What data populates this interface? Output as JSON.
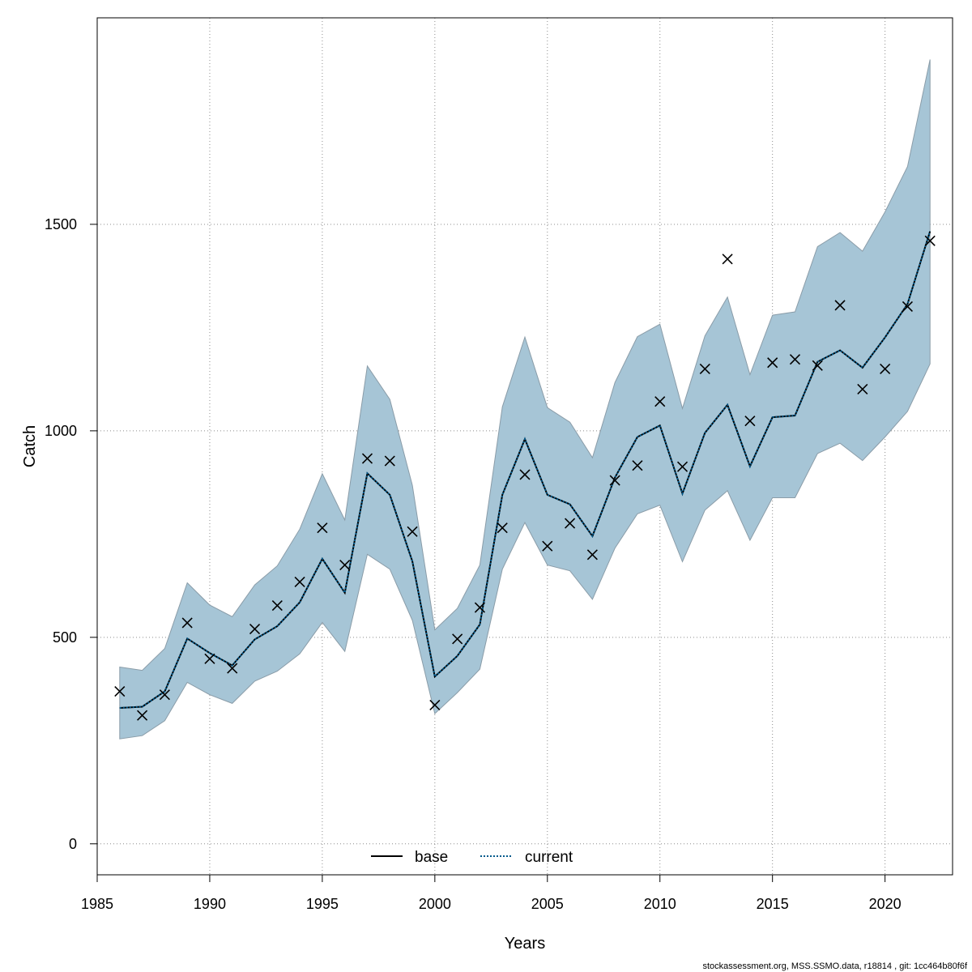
{
  "chart_data": {
    "type": "line",
    "xlabel": "Years",
    "ylabel": "Catch",
    "xlim": [
      1985,
      2023
    ],
    "ylim": [
      -75,
      2000
    ],
    "x_ticks": [
      1985,
      1990,
      1995,
      2000,
      2005,
      2010,
      2015,
      2020
    ],
    "y_ticks": [
      0,
      500,
      1000,
      1500
    ],
    "grid": true,
    "legend_position": "bottom-center",
    "band_color": "#a6c5d6",
    "band_edge_color": "#8a9ca8",
    "years": [
      1986,
      1987,
      1988,
      1989,
      1990,
      1991,
      1992,
      1993,
      1994,
      1995,
      1996,
      1997,
      1998,
      1999,
      2000,
      2001,
      2002,
      2003,
      2004,
      2005,
      2006,
      2007,
      2008,
      2009,
      2010,
      2011,
      2012,
      2013,
      2014,
      2015,
      2016,
      2017,
      2018,
      2019,
      2020,
      2021,
      2022
    ],
    "observed": [
      369,
      311,
      361,
      535,
      448,
      425,
      520,
      577,
      634,
      765,
      675,
      933,
      927,
      756,
      336,
      496,
      572,
      765,
      894,
      721,
      776,
      700,
      880,
      916,
      1071,
      913,
      1150,
      1416,
      1024,
      1165,
      1173,
      1158,
      1304,
      1101,
      1150,
      1301,
      1460
    ],
    "band_lower": [
      254,
      262,
      298,
      391,
      361,
      340,
      394,
      418,
      460,
      536,
      466,
      701,
      665,
      541,
      315,
      366,
      423,
      665,
      778,
      675,
      661,
      592,
      716,
      799,
      820,
      683,
      808,
      855,
      735,
      838,
      838,
      945,
      970,
      928,
      985,
      1047,
      1162
    ],
    "band_upper": [
      428,
      420,
      473,
      632,
      578,
      550,
      627,
      673,
      762,
      896,
      784,
      1157,
      1076,
      868,
      518,
      570,
      675,
      1058,
      1227,
      1056,
      1021,
      935,
      1117,
      1228,
      1258,
      1054,
      1230,
      1324,
      1136,
      1280,
      1288,
      1446,
      1480,
      1435,
      1530,
      1640,
      1899
    ],
    "series": [
      {
        "name": "base",
        "style": "solid",
        "color": "#000000",
        "values": [
          329,
          332,
          369,
          497,
          462,
          432,
          495,
          527,
          585,
          690,
          608,
          897,
          845,
          684,
          405,
          455,
          531,
          845,
          980,
          845,
          822,
          745,
          887,
          985,
          1013,
          848,
          995,
          1063,
          914,
          1033,
          1037,
          1167,
          1195,
          1153,
          1226,
          1307,
          1483
        ]
      },
      {
        "name": "current",
        "style": "dotted",
        "color": "#005a8c",
        "values": [
          329,
          332,
          369,
          497,
          462,
          432,
          495,
          527,
          585,
          690,
          608,
          897,
          845,
          684,
          405,
          455,
          531,
          845,
          980,
          845,
          822,
          745,
          887,
          985,
          1013,
          848,
          995,
          1063,
          914,
          1033,
          1037,
          1167,
          1195,
          1153,
          1226,
          1307,
          1483
        ]
      }
    ]
  },
  "footer": "stockassessment.org, MSS.SSMO.data, r18814 , git: 1cc464b80f6f"
}
